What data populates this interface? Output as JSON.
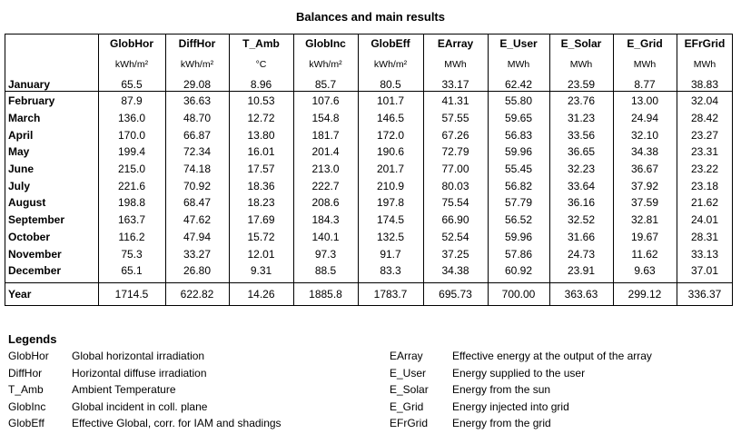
{
  "title": "Balances and main results",
  "columns": [
    {
      "name": "GlobHor",
      "unit": "kWh/m²"
    },
    {
      "name": "DiffHor",
      "unit": "kWh/m²"
    },
    {
      "name": "T_Amb",
      "unit": "°C"
    },
    {
      "name": "GlobInc",
      "unit": "kWh/m²"
    },
    {
      "name": "GlobEff",
      "unit": "kWh/m²"
    },
    {
      "name": "EArray",
      "unit": "MWh"
    },
    {
      "name": "E_User",
      "unit": "MWh"
    },
    {
      "name": "E_Solar",
      "unit": "MWh"
    },
    {
      "name": "E_Grid",
      "unit": "MWh"
    },
    {
      "name": "EFrGrid",
      "unit": "MWh"
    }
  ],
  "rows": [
    {
      "label": "January",
      "values": [
        "65.5",
        "29.08",
        "8.96",
        "85.7",
        "80.5",
        "33.17",
        "62.42",
        "23.59",
        "8.77",
        "38.83"
      ]
    },
    {
      "label": "February",
      "values": [
        "87.9",
        "36.63",
        "10.53",
        "107.6",
        "101.7",
        "41.31",
        "55.80",
        "23.76",
        "13.00",
        "32.04"
      ]
    },
    {
      "label": "March",
      "values": [
        "136.0",
        "48.70",
        "12.72",
        "154.8",
        "146.5",
        "57.55",
        "59.65",
        "31.23",
        "24.94",
        "28.42"
      ]
    },
    {
      "label": "April",
      "values": [
        "170.0",
        "66.87",
        "13.80",
        "181.7",
        "172.0",
        "67.26",
        "56.83",
        "33.56",
        "32.10",
        "23.27"
      ]
    },
    {
      "label": "May",
      "values": [
        "199.4",
        "72.34",
        "16.01",
        "201.4",
        "190.6",
        "72.79",
        "59.96",
        "36.65",
        "34.38",
        "23.31"
      ]
    },
    {
      "label": "June",
      "values": [
        "215.0",
        "74.18",
        "17.57",
        "213.0",
        "201.7",
        "77.00",
        "55.45",
        "32.23",
        "36.67",
        "23.22"
      ]
    },
    {
      "label": "July",
      "values": [
        "221.6",
        "70.92",
        "18.36",
        "222.7",
        "210.9",
        "80.03",
        "56.82",
        "33.64",
        "37.92",
        "23.18"
      ]
    },
    {
      "label": "August",
      "values": [
        "198.8",
        "68.47",
        "18.23",
        "208.6",
        "197.8",
        "75.54",
        "57.79",
        "36.16",
        "37.59",
        "21.62"
      ]
    },
    {
      "label": "September",
      "values": [
        "163.7",
        "47.62",
        "17.69",
        "184.3",
        "174.5",
        "66.90",
        "56.52",
        "32.52",
        "32.81",
        "24.01"
      ]
    },
    {
      "label": "October",
      "values": [
        "116.2",
        "47.94",
        "15.72",
        "140.1",
        "132.5",
        "52.54",
        "59.96",
        "31.66",
        "19.67",
        "28.31"
      ]
    },
    {
      "label": "November",
      "values": [
        "75.3",
        "33.27",
        "12.01",
        "97.3",
        "91.7",
        "37.25",
        "57.86",
        "24.73",
        "11.62",
        "33.13"
      ]
    },
    {
      "label": "December",
      "values": [
        "65.1",
        "26.80",
        "9.31",
        "88.5",
        "83.3",
        "34.38",
        "60.92",
        "23.91",
        "9.63",
        "37.01"
      ]
    }
  ],
  "total": {
    "label": "Year",
    "values": [
      "1714.5",
      "622.82",
      "14.26",
      "1885.8",
      "1783.7",
      "695.73",
      "700.00",
      "363.63",
      "299.12",
      "336.37"
    ]
  },
  "legends": {
    "title": "Legends",
    "left": [
      {
        "abbr": "GlobHor",
        "desc": "Global horizontal irradiation"
      },
      {
        "abbr": "DiffHor",
        "desc": "Horizontal diffuse irradiation"
      },
      {
        "abbr": "T_Amb",
        "desc": "Ambient Temperature"
      },
      {
        "abbr": "GlobInc",
        "desc": "Global incident in coll. plane"
      },
      {
        "abbr": "GlobEff",
        "desc": "Effective Global, corr. for IAM and shadings"
      }
    ],
    "right": [
      {
        "abbr": "EArray",
        "desc": "Effective energy at the output of the array"
      },
      {
        "abbr": "E_User",
        "desc": "Energy supplied to the user"
      },
      {
        "abbr": "E_Solar",
        "desc": "Energy from the sun"
      },
      {
        "abbr": "E_Grid",
        "desc": "Energy injected into grid"
      },
      {
        "abbr": "EFrGrid",
        "desc": "Energy from the grid"
      }
    ]
  }
}
